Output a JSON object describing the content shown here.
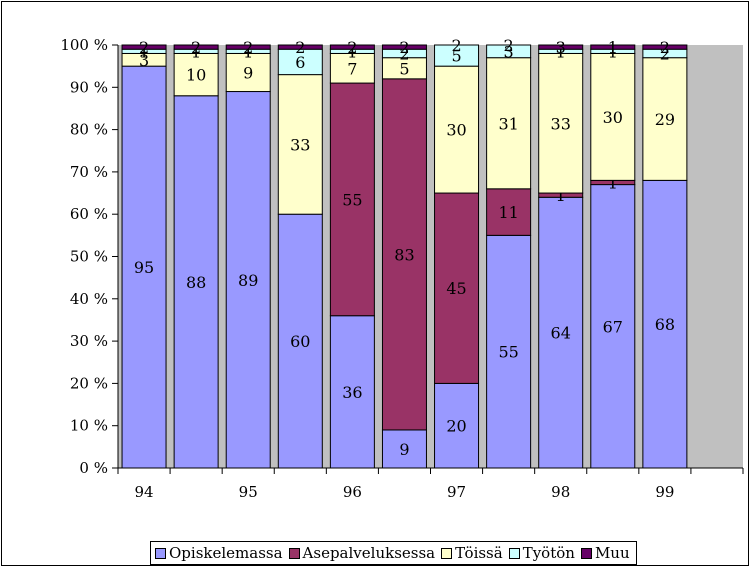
{
  "chart_data": {
    "type": "bar",
    "stacked": true,
    "categories": [
      "94a",
      "94b",
      "95a",
      "95b",
      "96a",
      "96b",
      "97a",
      "97b",
      "98a",
      "98b",
      "99a",
      "99b"
    ],
    "x_tick_labels": [
      "94",
      "95",
      "96",
      "97",
      "98",
      "99"
    ],
    "ylim": [
      0,
      100
    ],
    "y_ticks": [
      "0 %",
      "10 %",
      "20 %",
      "30 %",
      "40 %",
      "50 %",
      "60 %",
      "70 %",
      "80 %",
      "90 %",
      "100 %"
    ],
    "plot_background": "#c0c0c0",
    "legend_position": "bottom",
    "series": [
      {
        "name": "Opiskelemassa",
        "color": "#9999ff",
        "values": [
          95,
          88,
          89,
          60,
          36,
          9,
          20,
          55,
          64,
          67,
          68,
          null
        ],
        "labels": [
          "95",
          "88",
          "89",
          "60",
          "36",
          "9",
          "20",
          "55",
          "64",
          "67",
          "68",
          ""
        ]
      },
      {
        "name": "Asepalveluksessa",
        "color": "#993366",
        "values": [
          0,
          0,
          0,
          0,
          55,
          83,
          45,
          11,
          1,
          1,
          0,
          null
        ],
        "labels": [
          "",
          "",
          "",
          "",
          "55",
          "83",
          "45",
          "11",
          "1",
          "1",
          "",
          ""
        ]
      },
      {
        "name": "Töissä",
        "color": "#ffffcc",
        "values": [
          3,
          10,
          9,
          33,
          7,
          5,
          30,
          31,
          33,
          30,
          29,
          null
        ],
        "labels": [
          "3",
          "10",
          "9",
          "33",
          "7",
          "5",
          "30",
          "31",
          "33",
          "30",
          "29",
          ""
        ]
      },
      {
        "name": "Työtön",
        "color": "#ccffff",
        "values": [
          1,
          1,
          1,
          6,
          1,
          2,
          5,
          3,
          1,
          1,
          2,
          null
        ],
        "labels": [
          "1",
          "1",
          "1",
          "6",
          "1",
          "2",
          "5",
          "3",
          "1",
          "1",
          "2",
          ""
        ]
      },
      {
        "name": "Muu",
        "color": "#660066",
        "values": [
          2,
          2,
          2,
          2,
          2,
          2,
          2,
          2,
          3,
          1,
          2,
          null
        ],
        "labels": [
          "2",
          "2",
          "2",
          "2",
          "2",
          "2",
          "2",
          "2",
          "3",
          "1",
          "2",
          ""
        ]
      }
    ]
  }
}
